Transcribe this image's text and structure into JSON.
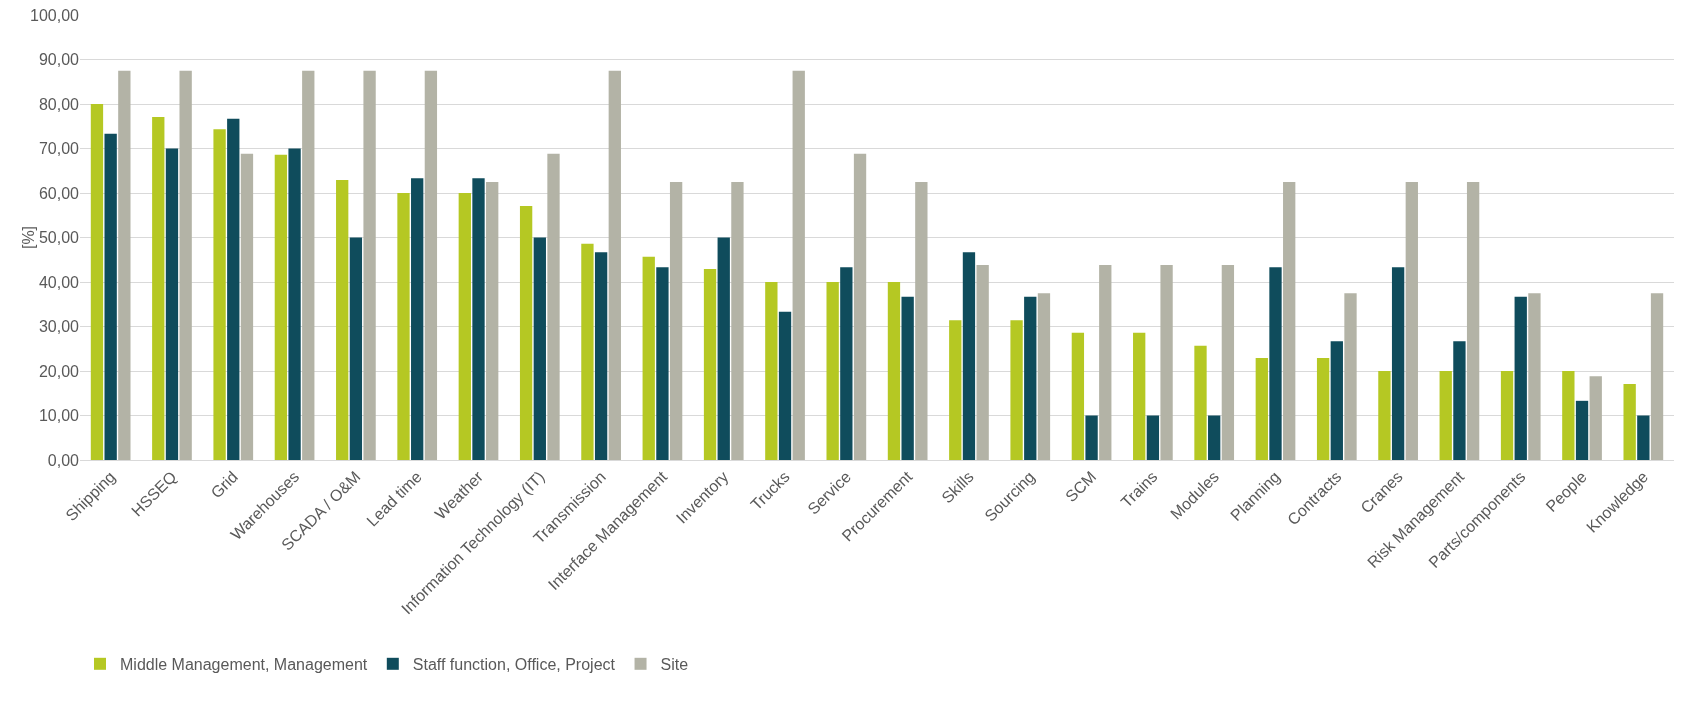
{
  "chart_data": {
    "type": "bar",
    "ylabel": "[%]",
    "categories": [
      "Shipping",
      "HSSEQ",
      "Grid",
      "Warehouses",
      "SCADA / O&M",
      "Lead time",
      "Weather",
      "Information Technology (IT)",
      "Transmission",
      "Interface Management",
      "Inventory",
      "Trucks",
      "Service",
      "Procurement",
      "Skills",
      "Sourcing",
      "SCM",
      "Trains",
      "Modules",
      "Planning",
      "Contracts",
      "Cranes",
      "Risk Management",
      "Parts/components",
      "People",
      "Knowledge"
    ],
    "series": [
      {
        "name": "Middle Management, Management",
        "color": "#b5c823",
        "values": [
          80,
          77.1,
          74.3,
          68.6,
          62.9,
          60,
          60,
          57.1,
          48.6,
          45.7,
          42.9,
          40,
          40,
          40,
          31.4,
          31.4,
          28.6,
          28.6,
          25.7,
          22.9,
          22.9,
          20,
          20,
          20,
          20,
          17.1
        ]
      },
      {
        "name": "Staff function, Office, Project",
        "color": "#0f4c5c",
        "values": [
          73.3,
          70,
          76.7,
          70,
          50,
          63.3,
          63.3,
          50,
          46.7,
          43.3,
          50,
          33.3,
          43.3,
          36.7,
          46.7,
          36.7,
          10,
          10,
          10,
          43.3,
          26.7,
          43.3,
          26.7,
          36.7,
          13.3,
          10
        ]
      },
      {
        "name": "Site",
        "color": "#b3b3a6",
        "values": [
          87.5,
          87.5,
          68.8,
          87.5,
          87.5,
          87.5,
          62.5,
          68.8,
          87.5,
          62.5,
          62.5,
          87.5,
          68.8,
          62.5,
          43.8,
          37.5,
          43.8,
          43.8,
          43.8,
          62.5,
          37.5,
          62.5,
          62.5,
          37.5,
          18.8,
          37.5
        ]
      }
    ],
    "ylim": [
      0,
      100
    ],
    "yticks": [
      {
        "value": 0,
        "label": "0,00"
      },
      {
        "value": 10,
        "label": "10,00"
      },
      {
        "value": 20,
        "label": "20,00"
      },
      {
        "value": 30,
        "label": "30,00"
      },
      {
        "value": 40,
        "label": "40,00"
      },
      {
        "value": 50,
        "label": "50,00"
      },
      {
        "value": 60,
        "label": "60,00"
      },
      {
        "value": 70,
        "label": "70,00"
      },
      {
        "value": 80,
        "label": "80,00"
      },
      {
        "value": 90,
        "label": "90,00"
      },
      {
        "value": 100,
        "label": "100,00"
      }
    ],
    "grid": "y",
    "legend": "bottom left"
  }
}
